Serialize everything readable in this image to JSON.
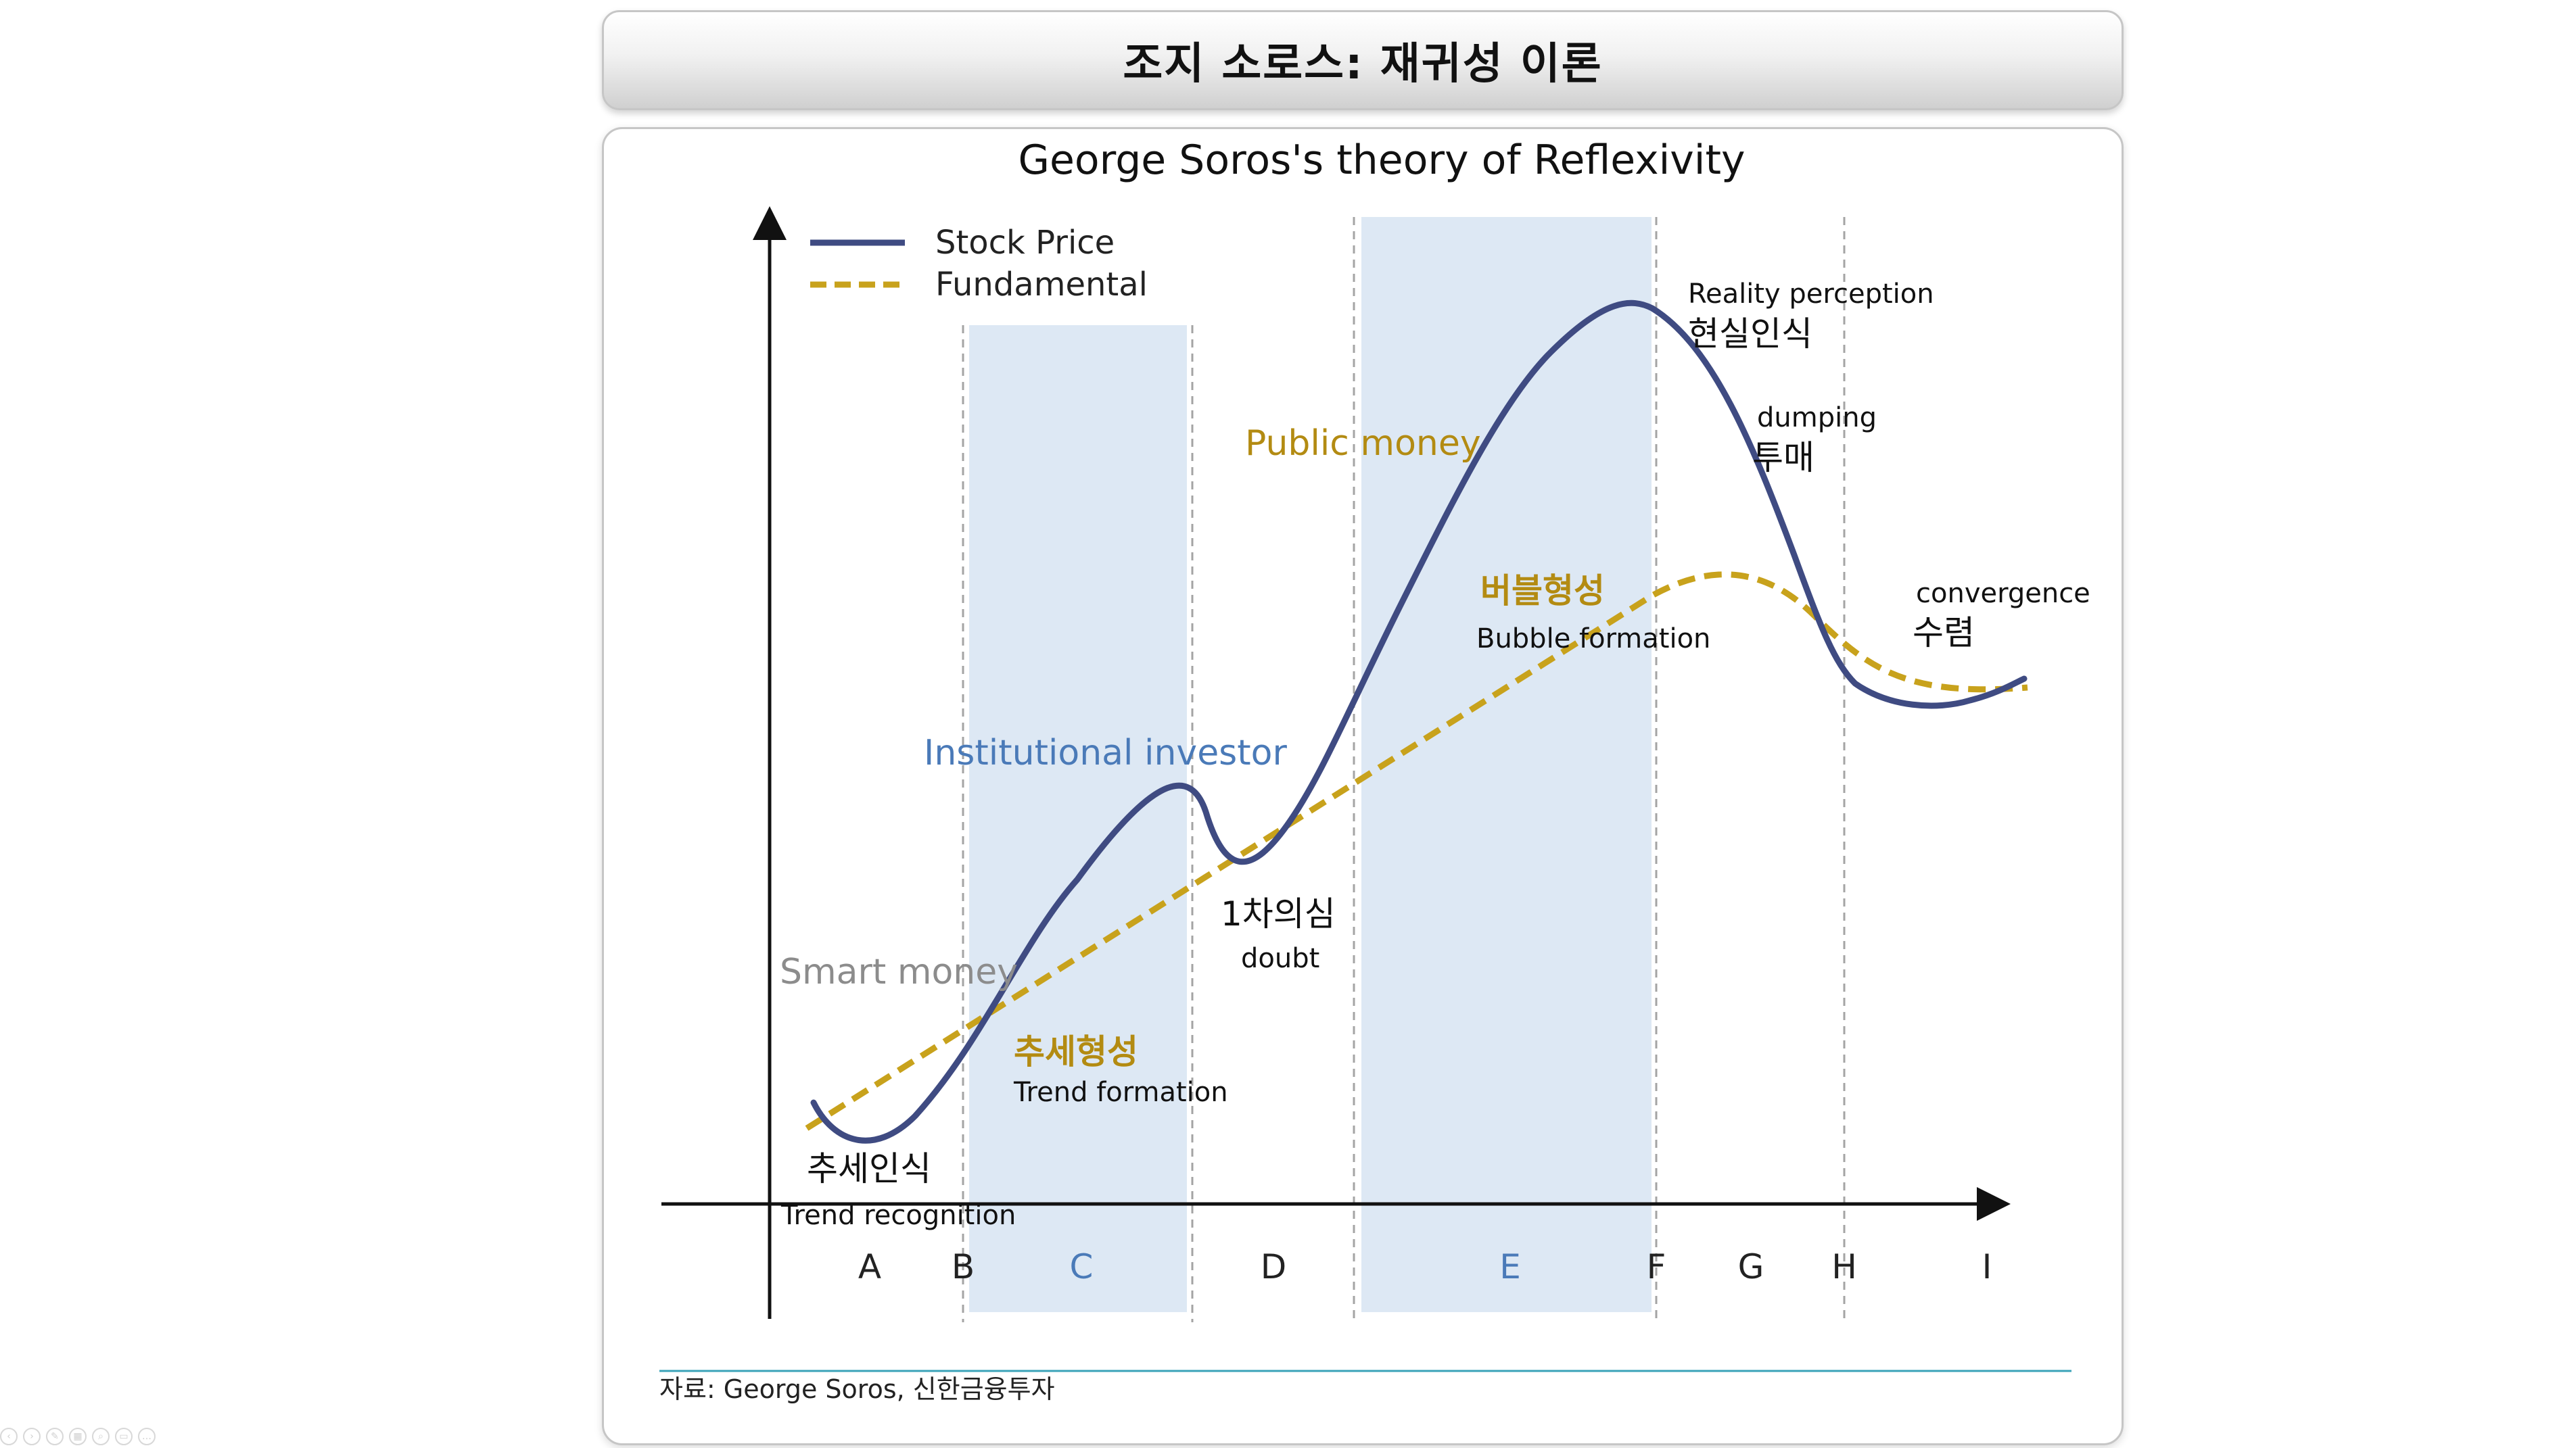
{
  "slide": {
    "title": "조지 소로스: 재귀성 이론"
  },
  "figure": {
    "title": "George Soros's theory of Reflexivity",
    "legend": [
      {
        "label": "Stock Price",
        "color": "#3f4b82",
        "style": "solid"
      },
      {
        "label": "Fundamental",
        "color": "#c8a21c",
        "style": "dashed"
      }
    ],
    "stage_labels": [
      "A",
      "B",
      "C",
      "D",
      "E",
      "F",
      "G",
      "H",
      "I"
    ],
    "investor_labels": {
      "smart_money": "Smart money",
      "institutional": "Institutional investor",
      "public_money": "Public money"
    },
    "annotations": {
      "trend_recognition_kr": "추세인식",
      "trend_recognition_en": "Trend recognition",
      "trend_formation_kr": "추세형성",
      "trend_formation_en": "Trend formation",
      "doubt_kr": "1차의심",
      "doubt_en": "doubt",
      "bubble_kr": "버블형성",
      "bubble_en": "Bubble formation",
      "reality_en": "Reality perception",
      "reality_kr": "현실인식",
      "dumping_en": "dumping",
      "dumping_kr": "투매",
      "convergence_en": "convergence",
      "convergence_kr": "수렴"
    },
    "colors": {
      "stock_line": "#3f4b82",
      "fundamental_line": "#c8a21c",
      "shaded_band": "#dde8f4",
      "smart_money": "#8c8c8c",
      "institutional": "#4a7ab8",
      "public_money": "#b38b12",
      "gold_label": "#b38b12",
      "source_rule": "#3aa3b8"
    },
    "source": "자료: George Soros, 신한금융투자"
  },
  "toolbar": {
    "icons": [
      "prev-icon",
      "next-icon",
      "pen-icon",
      "slides-icon",
      "zoom-icon",
      "subtitle-icon",
      "more-icon"
    ]
  }
}
